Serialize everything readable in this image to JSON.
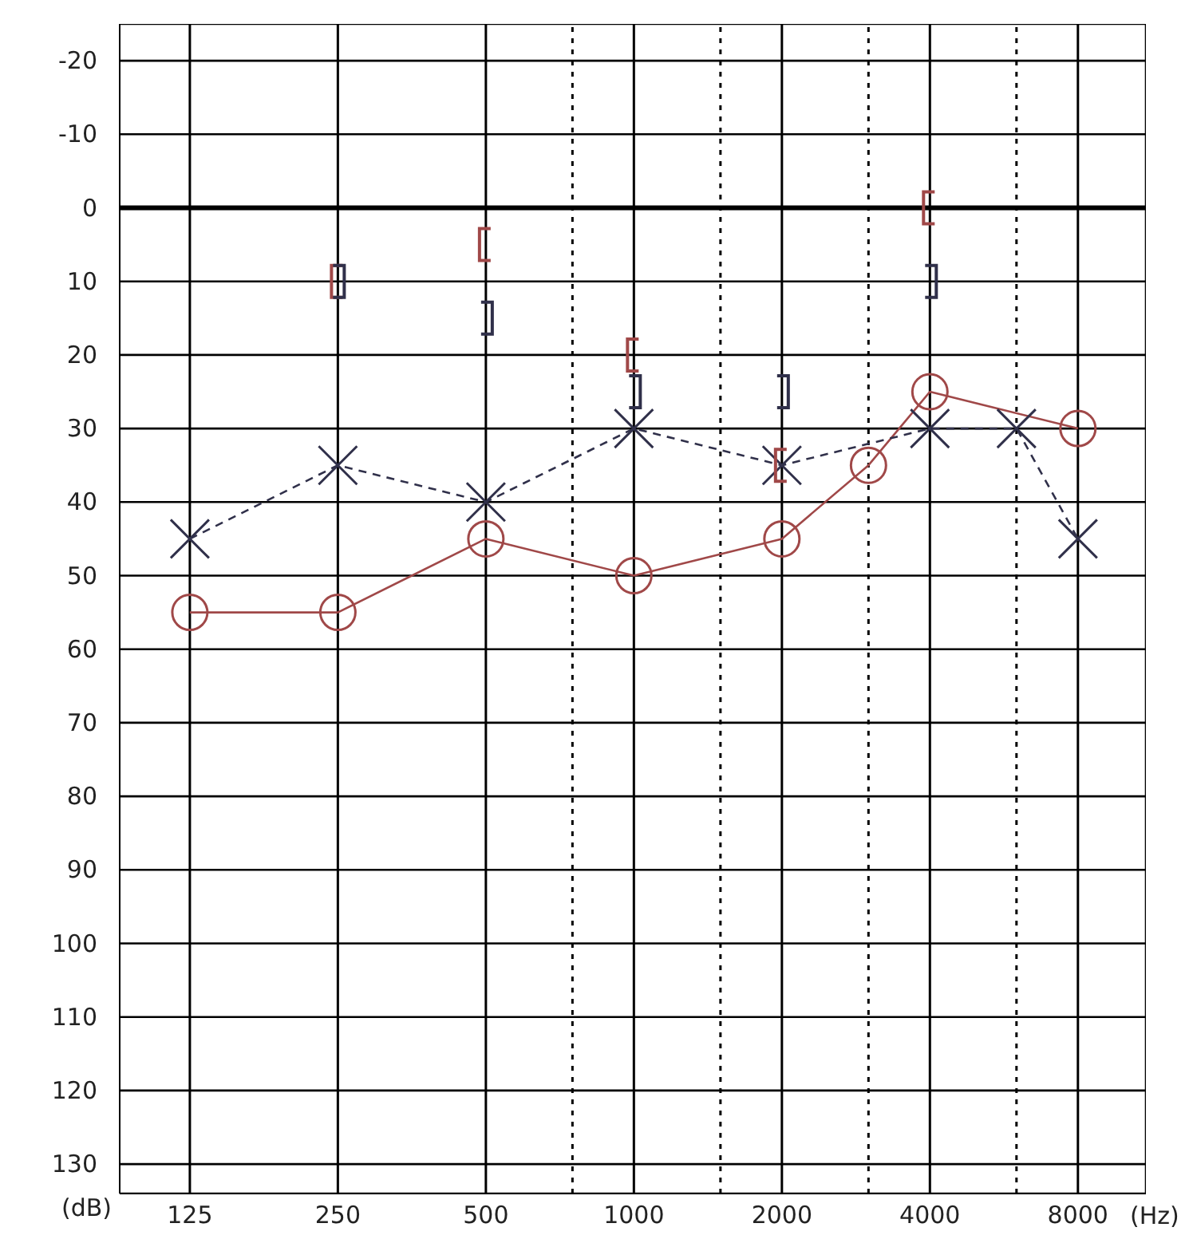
{
  "chart_data": {
    "type": "line",
    "xlabel": "(Hz)",
    "ylabel": "(dB)",
    "log": "x",
    "xlim": [
      90,
      11000
    ],
    "ylim": [
      134,
      -25
    ],
    "xticks": [
      125,
      250,
      500,
      {
        "value": 750,
        "label": null
      },
      1000,
      {
        "value": 1500,
        "label": null
      },
      2000,
      {
        "value": 3000,
        "label": null
      },
      4000,
      {
        "value": 6000,
        "label": null
      },
      8000
    ],
    "yticks": [
      -20,
      -10,
      0,
      10,
      20,
      30,
      40,
      50,
      60,
      70,
      80,
      90,
      100,
      110,
      120,
      130
    ],
    "grid": true,
    "ref_lines": [
      {
        "axis": "y",
        "value": 0,
        "color": "#000000"
      }
    ],
    "series": [
      {
        "color": "#a04848",
        "marker": "circle",
        "line_style": "solid",
        "x": [
          125,
          250,
          500,
          1000,
          2000,
          3000,
          4000,
          8000
        ],
        "values": [
          55,
          55,
          45,
          50,
          45,
          35,
          25,
          30
        ]
      },
      {
        "color": "#30304a",
        "marker": "cross",
        "line_style": "dashed",
        "x": [
          125,
          250,
          500,
          1000,
          2000,
          4000,
          6000,
          8000
        ],
        "values": [
          45,
          35,
          40,
          30,
          35,
          30,
          30,
          45
        ]
      },
      {
        "type": "scatter",
        "color": "#a04848",
        "x": [
          250,
          500,
          1000,
          2000,
          4000
        ],
        "values": [
          10,
          5,
          20,
          35,
          0
        ]
      },
      {
        "type": "scatter",
        "color": "#30304a",
        "x": [
          250,
          500,
          1000,
          2000,
          4000
        ],
        "values": [
          10,
          15,
          25,
          25,
          10
        ]
      }
    ]
  }
}
